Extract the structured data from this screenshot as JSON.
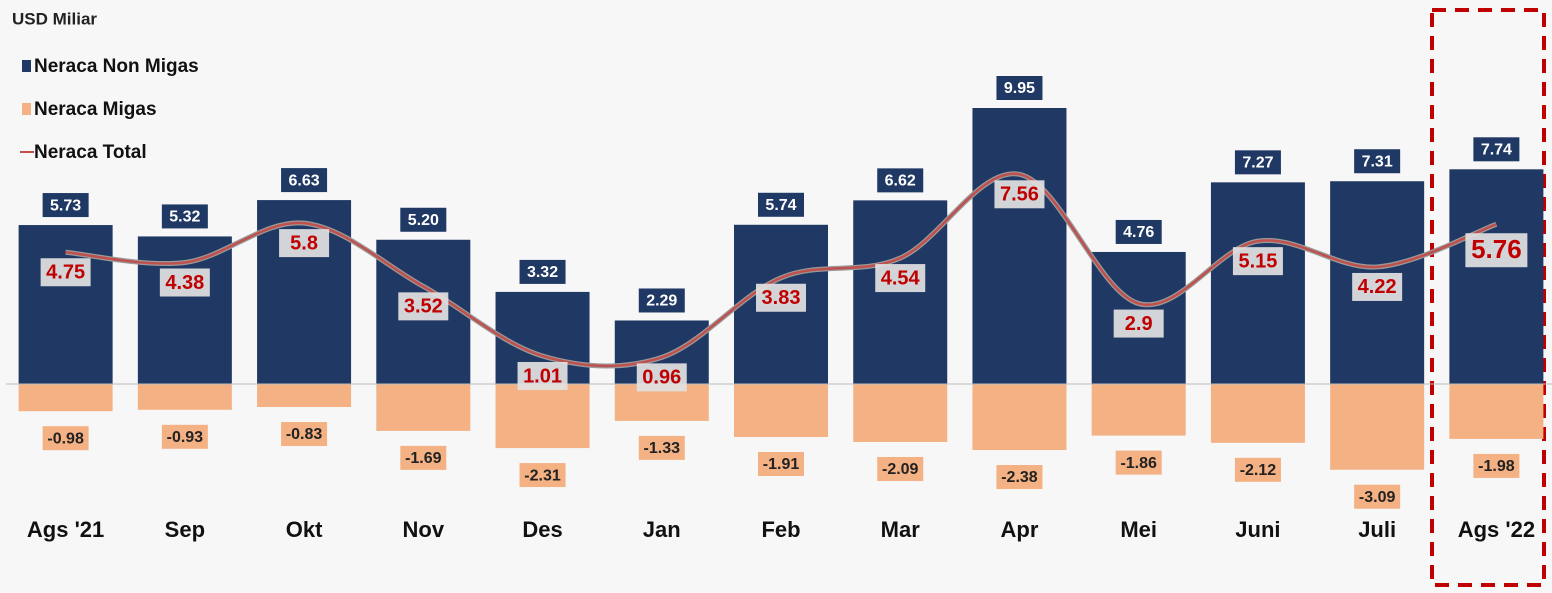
{
  "chart_data": {
    "type": "bar_line",
    "unit_label": "USD Miliar",
    "categories": [
      "Ags '21",
      "Sep",
      "Okt",
      "Nov",
      "Des",
      "Jan",
      "Feb",
      "Mar",
      "Apr",
      "Mei",
      "Juni",
      "Juli",
      "Ags '22"
    ],
    "series": [
      {
        "name": "Neraca Non Migas",
        "color": "#1f3864",
        "kind": "bar",
        "values": [
          5.73,
          5.32,
          6.63,
          5.2,
          3.32,
          2.29,
          5.74,
          6.62,
          9.95,
          4.76,
          7.27,
          7.31,
          7.74
        ],
        "value_labels": [
          "5.73",
          "5.32",
          "6.63",
          "5.20",
          "3.32",
          "2.29",
          "5.74",
          "6.62",
          "9.95",
          "4.76",
          "7.27",
          "7.31",
          "7.74"
        ]
      },
      {
        "name": "Neraca Migas",
        "color": "#f4b183",
        "kind": "bar",
        "values": [
          -0.98,
          -0.93,
          -0.83,
          -1.69,
          -2.31,
          -1.33,
          -1.91,
          -2.09,
          -2.38,
          -1.86,
          -2.12,
          -3.09,
          -1.98
        ]
      },
      {
        "name": "Neraca Total",
        "color": "#c0504d",
        "kind": "line",
        "values": [
          4.75,
          4.38,
          5.8,
          3.52,
          1.01,
          0.96,
          3.83,
          4.54,
          7.56,
          2.9,
          5.15,
          4.22,
          5.76
        ]
      }
    ]
  }
}
